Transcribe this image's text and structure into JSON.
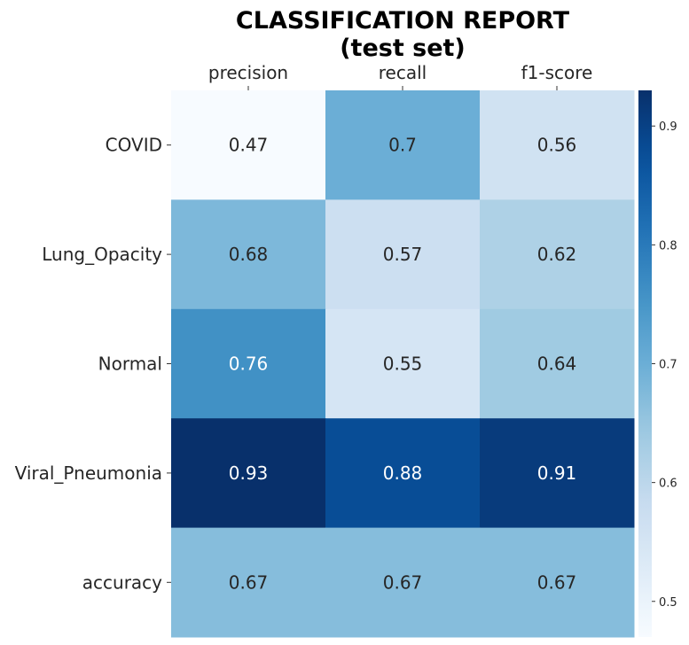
{
  "chart_data": {
    "type": "heatmap",
    "title": "CLASSIFICATION REPORT",
    "subtitle": "(test set)",
    "columns": [
      "precision",
      "recall",
      "f1-score"
    ],
    "rows": [
      "COVID",
      "Lung_Opacity",
      "Normal",
      "Viral_Pneumonia",
      "accuracy"
    ],
    "values": [
      [
        0.47,
        0.7,
        0.56
      ],
      [
        0.68,
        0.57,
        0.62
      ],
      [
        0.76,
        0.55,
        0.64
      ],
      [
        0.93,
        0.88,
        0.91
      ],
      [
        0.67,
        0.67,
        0.67
      ]
    ],
    "value_labels": [
      [
        "0.47",
        "0.7",
        "0.56"
      ],
      [
        "0.68",
        "0.57",
        "0.62"
      ],
      [
        "0.76",
        "0.55",
        "0.64"
      ],
      [
        "0.93",
        "0.88",
        "0.91"
      ],
      [
        "0.67",
        "0.67",
        "0.67"
      ]
    ],
    "colormap": "Blues",
    "colorbar": {
      "range": [
        0.47,
        0.93
      ],
      "ticks": [
        "0.5",
        "0.6",
        "0.7",
        "0.8",
        "0.9"
      ]
    },
    "column_labels_position": "top"
  }
}
